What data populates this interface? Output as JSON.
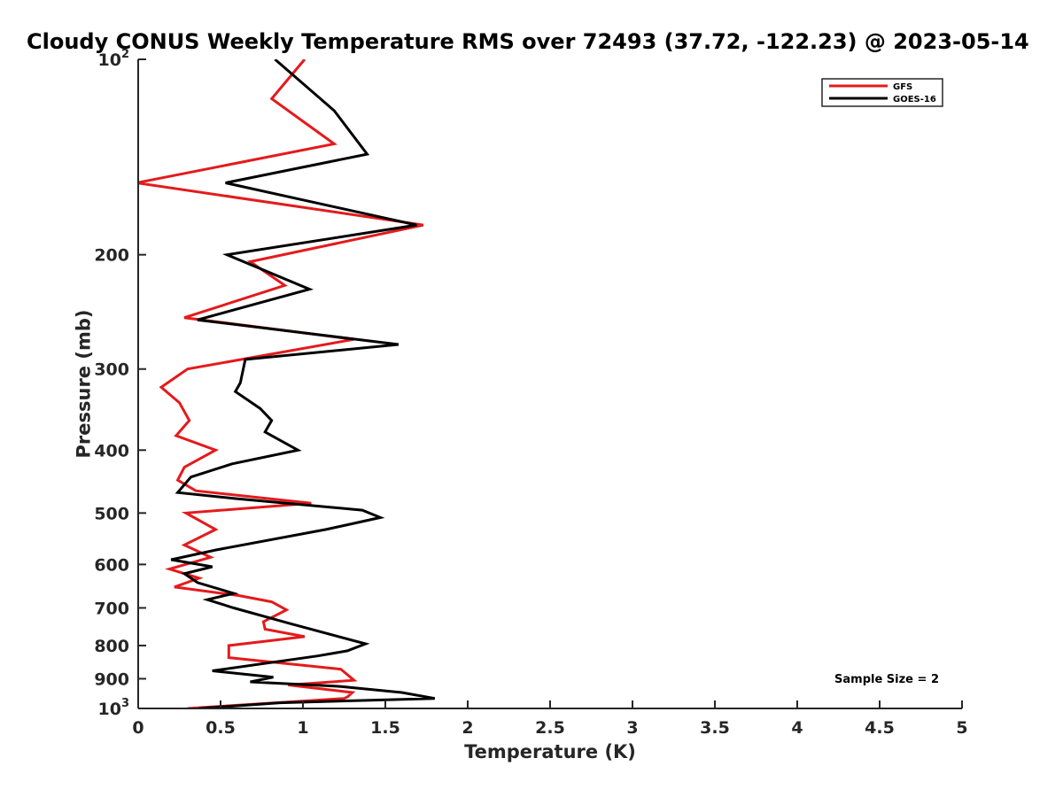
{
  "chart_data": {
    "type": "line",
    "title": "Cloudy CONUS Weekly Temperature RMS over 72493 (37.72, -122.23) @ 2023-05-14",
    "xlabel": "Temperature (K)",
    "ylabel": "Pressure (mb)",
    "xlim": [
      0,
      5
    ],
    "ylim": [
      100,
      1000
    ],
    "y_scale": "log",
    "y_reversed": true,
    "x_ticks": [
      0,
      0.5,
      1,
      1.5,
      2,
      2.5,
      3,
      3.5,
      4,
      4.5,
      5
    ],
    "x_tick_labels": [
      "0",
      "0.5",
      "1",
      "1.5",
      "2",
      "2.5",
      "3",
      "3.5",
      "4",
      "4.5",
      "5"
    ],
    "y_ticks": [
      100,
      200,
      300,
      400,
      500,
      600,
      700,
      800,
      900,
      1000
    ],
    "y_tick_labels": [
      {
        "base": "10",
        "exp": "2"
      },
      {
        "base": "200",
        "exp": ""
      },
      {
        "base": "300",
        "exp": ""
      },
      {
        "base": "400",
        "exp": ""
      },
      {
        "base": "500",
        "exp": ""
      },
      {
        "base": "600",
        "exp": ""
      },
      {
        "base": "700",
        "exp": ""
      },
      {
        "base": "800",
        "exp": ""
      },
      {
        "base": "900",
        "exp": ""
      },
      {
        "base": "10",
        "exp": "3"
      }
    ],
    "grid": false,
    "legend_position": "top-right",
    "annotation": "Sample Size = 2",
    "series": [
      {
        "name": "GFS",
        "color": "#e41a1c",
        "points": [
          [
            1.01,
            100
          ],
          [
            0.81,
            115
          ],
          [
            1.19,
            135
          ],
          [
            -0.01,
            155
          ],
          [
            1.73,
            180
          ],
          [
            0.68,
            205
          ],
          [
            0.89,
            223
          ],
          [
            0.28,
            250
          ],
          [
            1.31,
            270
          ],
          [
            0.3,
            300
          ],
          [
            0.14,
            320
          ],
          [
            0.25,
            338
          ],
          [
            0.31,
            360
          ],
          [
            0.23,
            380
          ],
          [
            0.47,
            400
          ],
          [
            0.28,
            425
          ],
          [
            0.24,
            445
          ],
          [
            0.35,
            462
          ],
          [
            1.05,
            483
          ],
          [
            0.29,
            500
          ],
          [
            0.47,
            530
          ],
          [
            0.28,
            560
          ],
          [
            0.44,
            585
          ],
          [
            0.19,
            610
          ],
          [
            0.37,
            630
          ],
          [
            0.22,
            650
          ],
          [
            0.61,
            670
          ],
          [
            0.81,
            685
          ],
          [
            0.9,
            705
          ],
          [
            0.76,
            735
          ],
          [
            0.77,
            755
          ],
          [
            1.01,
            775
          ],
          [
            0.55,
            800
          ],
          [
            0.55,
            835
          ],
          [
            1.23,
            870
          ],
          [
            1.31,
            905
          ],
          [
            0.91,
            920
          ],
          [
            1.3,
            945
          ],
          [
            1.27,
            960
          ],
          [
            1.25,
            965
          ],
          [
            0.3,
            1000
          ]
        ]
      },
      {
        "name": "GOES-16",
        "color": "#000000",
        "points": [
          [
            0.83,
            100
          ],
          [
            1.19,
            120
          ],
          [
            1.39,
            140
          ],
          [
            0.53,
            155
          ],
          [
            1.69,
            180
          ],
          [
            0.54,
            200
          ],
          [
            1.04,
            226
          ],
          [
            0.36,
            252
          ],
          [
            1.58,
            275
          ],
          [
            0.65,
            290
          ],
          [
            0.62,
            315
          ],
          [
            0.59,
            325
          ],
          [
            0.74,
            345
          ],
          [
            0.81,
            360
          ],
          [
            0.77,
            375
          ],
          [
            0.97,
            400
          ],
          [
            0.57,
            420
          ],
          [
            0.32,
            440
          ],
          [
            0.24,
            465
          ],
          [
            0.59,
            475
          ],
          [
            1.36,
            495
          ],
          [
            1.47,
            508
          ],
          [
            1.14,
            530
          ],
          [
            0.47,
            570
          ],
          [
            0.2,
            590
          ],
          [
            0.45,
            605
          ],
          [
            0.28,
            620
          ],
          [
            0.36,
            640
          ],
          [
            0.58,
            665
          ],
          [
            0.42,
            680
          ],
          [
            0.58,
            700
          ],
          [
            0.92,
            740
          ],
          [
            1.38,
            795
          ],
          [
            1.27,
            815
          ],
          [
            1.09,
            830
          ],
          [
            0.45,
            875
          ],
          [
            0.82,
            895
          ],
          [
            0.68,
            910
          ],
          [
            1.23,
            925
          ],
          [
            1.6,
            945
          ],
          [
            1.8,
            965
          ],
          [
            0.86,
            980
          ],
          [
            0.37,
            1000
          ]
        ]
      }
    ]
  }
}
